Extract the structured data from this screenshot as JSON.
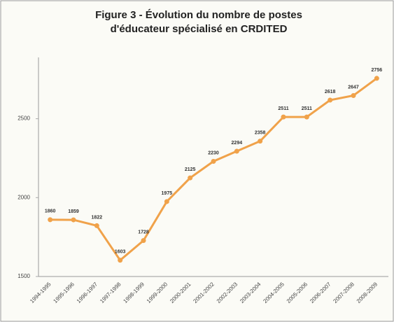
{
  "chart_data": {
    "type": "line",
    "title": [
      "Figure 3 - Évolution du nombre de postes",
      "d'éducateur spécialisé en CRDITED"
    ],
    "categories": [
      "1994-1995",
      "1995-1996",
      "1996-1997",
      "1997-1998",
      "1998-1999",
      "1999-2000",
      "2000-2001",
      "2001-2002",
      "2002-2003",
      "2003-2004",
      "2004-2005",
      "2005-2006",
      "2006-2007",
      "2007-2008",
      "2008-2009"
    ],
    "values": [
      1860,
      1859,
      1822,
      1603,
      1728,
      1975,
      2125,
      2230,
      2294,
      2358,
      2511,
      2511,
      2618,
      2647,
      2756
    ],
    "color": "#f0a24a",
    "ylim": [
      1500,
      2800
    ],
    "yticks": [
      1500,
      2000,
      2500
    ],
    "grid": false
  }
}
